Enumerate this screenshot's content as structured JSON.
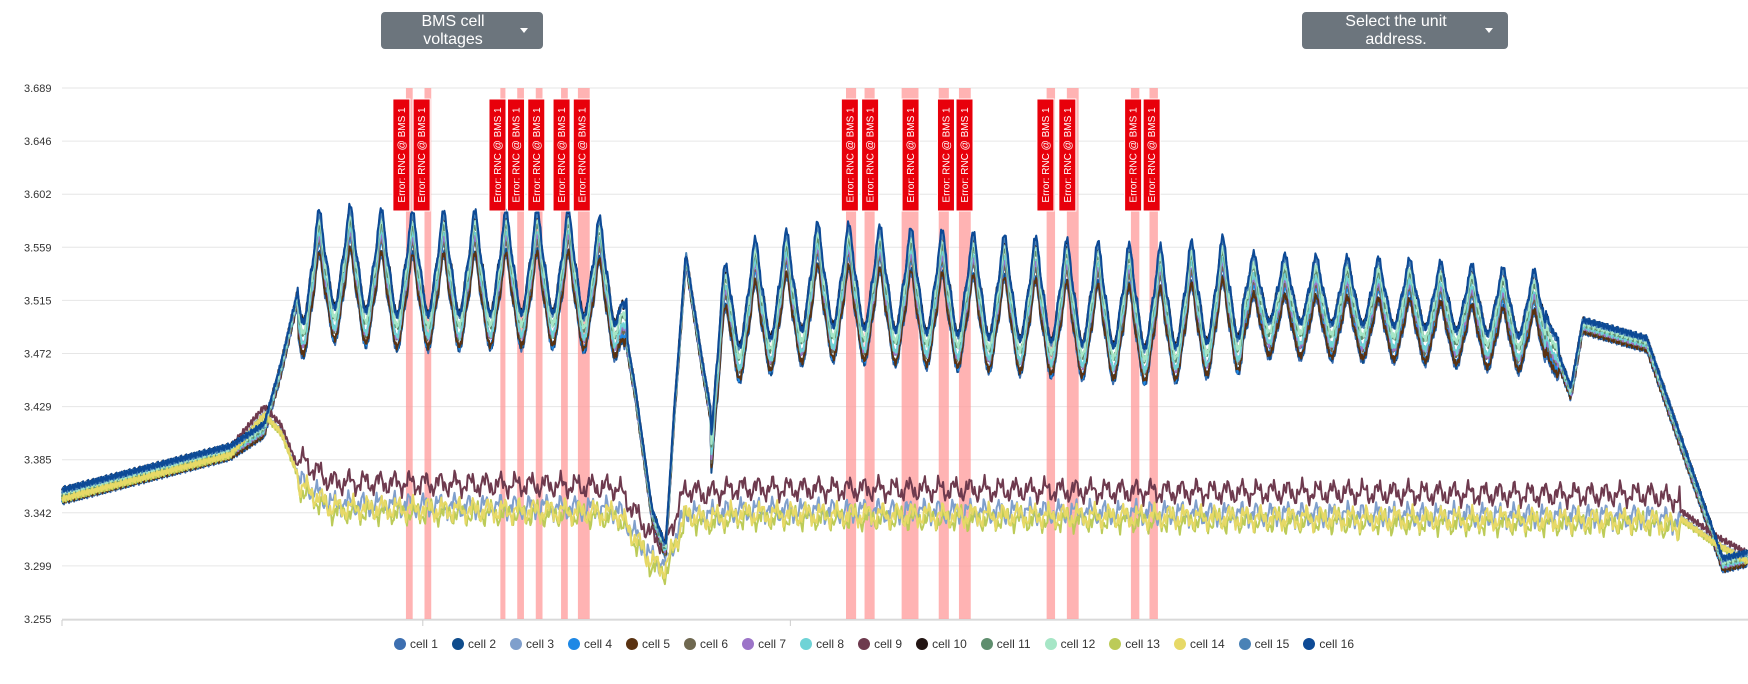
{
  "controls": {
    "metric_dropdown": "BMS cell voltages",
    "unit_dropdown": "Select the unit address."
  },
  "chart_data": {
    "type": "line",
    "title": "",
    "xlabel": "",
    "ylabel": "",
    "ylim": [
      3.255,
      3.689
    ],
    "yticks": [
      "3.689",
      "3.646",
      "3.602",
      "3.559",
      "3.515",
      "3.472",
      "3.429",
      "3.385",
      "3.342",
      "3.299",
      "3.255"
    ],
    "grid": true,
    "legend_position": "bottom",
    "xlim": [
      0,
      100
    ],
    "error_label": "Error: RNC @ BMS 1",
    "error_band_color": "#ff9a9a",
    "error_label_color": "#e8000b",
    "error_bands": [
      [
        20.4,
        20.8
      ],
      [
        21.5,
        21.9
      ],
      [
        26.0,
        26.3
      ],
      [
        27.0,
        27.4
      ],
      [
        28.1,
        28.5
      ],
      [
        29.6,
        30.0
      ],
      [
        30.6,
        31.3
      ],
      [
        46.5,
        47.1
      ],
      [
        47.6,
        48.2
      ],
      [
        49.8,
        50.8
      ],
      [
        52.0,
        52.6
      ],
      [
        53.2,
        53.9
      ],
      [
        58.4,
        58.9
      ],
      [
        59.6,
        60.3
      ],
      [
        63.4,
        63.9
      ],
      [
        64.5,
        65.0
      ]
    ],
    "error_annotations": [
      20.1,
      21.3,
      25.8,
      26.9,
      28.1,
      29.6,
      30.8,
      46.7,
      47.9,
      50.3,
      52.4,
      53.5,
      58.3,
      59.6,
      63.5,
      64.6
    ],
    "series": [
      {
        "name": "cell 1",
        "color": "#3d6fb0"
      },
      {
        "name": "cell 2",
        "color": "#0f4c8c"
      },
      {
        "name": "cell 3",
        "color": "#7f9fcc"
      },
      {
        "name": "cell 4",
        "color": "#1e88e5"
      },
      {
        "name": "cell 5",
        "color": "#5a3211"
      },
      {
        "name": "cell 6",
        "color": "#6f6850"
      },
      {
        "name": "cell 7",
        "color": "#9c74c8"
      },
      {
        "name": "cell 8",
        "color": "#6fd3d6"
      },
      {
        "name": "cell 9",
        "color": "#6e3a4e"
      },
      {
        "name": "cell 10",
        "color": "#231513"
      },
      {
        "name": "cell 11",
        "color": "#5f8e6e"
      },
      {
        "name": "cell 12",
        "color": "#a6e6c6"
      },
      {
        "name": "cell 13",
        "color": "#bccb58"
      },
      {
        "name": "cell 14",
        "color": "#e7d967"
      },
      {
        "name": "cell 15",
        "color": "#4a82b6"
      },
      {
        "name": "cell 16",
        "color": "#0d4a96"
      }
    ]
  }
}
